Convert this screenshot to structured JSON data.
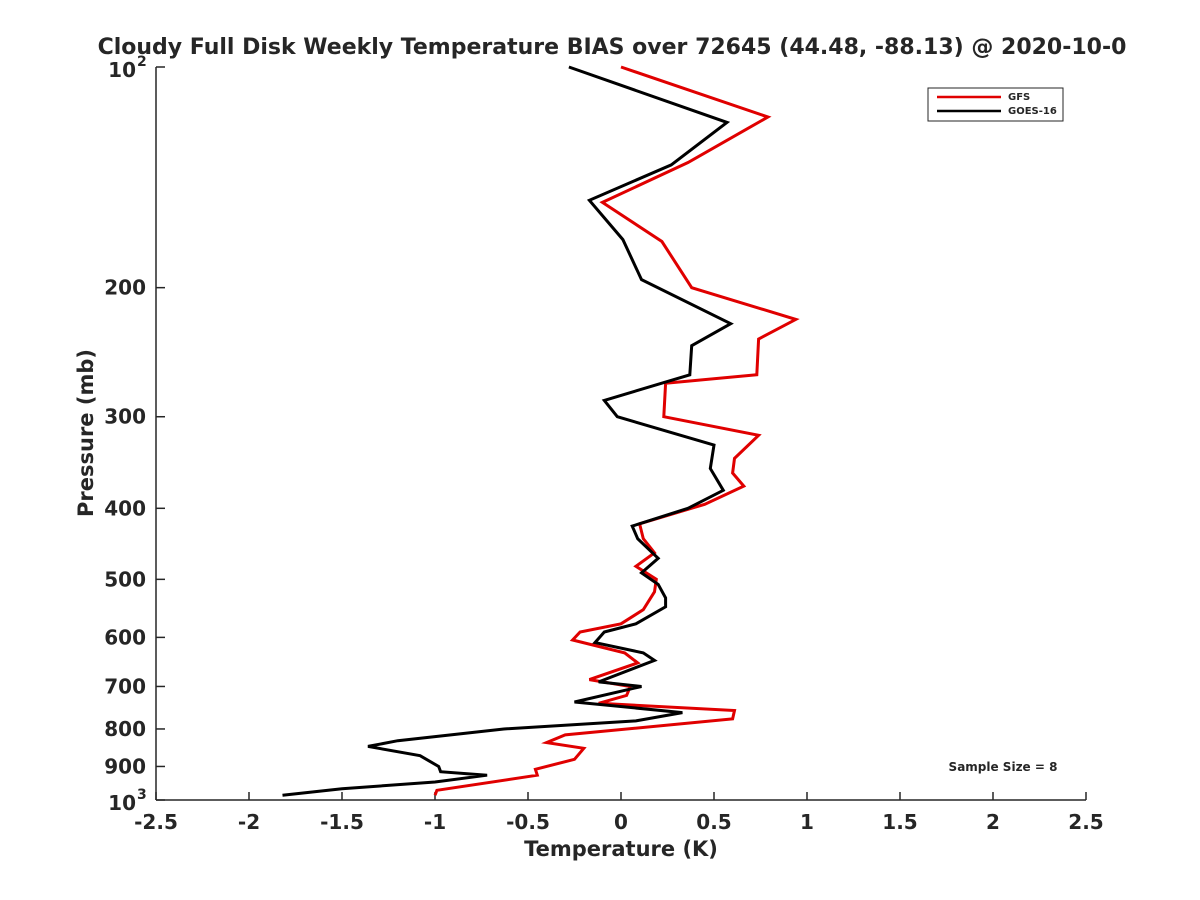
{
  "chart_data": {
    "type": "line",
    "title": "Cloudy Full Disk Weekly Temperature BIAS over 72645 (44.48, -88.13) @ 2020-10-0",
    "xlabel": "Temperature (K)",
    "ylabel": "Pressure (mb)",
    "xlim": [
      -2.5,
      2.5
    ],
    "ylim": [
      100,
      1000
    ],
    "y_scale": "log",
    "y_reversed": true,
    "grid": false,
    "legend_position": "top-right",
    "x_ticks": [
      "-2.5",
      "-2",
      "-1.5",
      "-1",
      "-0.5",
      "0",
      "0.5",
      "1",
      "1.5",
      "2",
      "2.5"
    ],
    "x_tick_values": [
      -2.5,
      -2,
      -1.5,
      -1,
      -0.5,
      0,
      0.5,
      1,
      1.5,
      2,
      2.5
    ],
    "y_ticks": [
      {
        "value": 100,
        "base": "10",
        "exp": "2"
      },
      {
        "value": 200,
        "label": "200"
      },
      {
        "value": 300,
        "label": "300"
      },
      {
        "value": 400,
        "label": "400"
      },
      {
        "value": 500,
        "label": "500"
      },
      {
        "value": 600,
        "label": "600"
      },
      {
        "value": 700,
        "label": "700"
      },
      {
        "value": 800,
        "label": "800"
      },
      {
        "value": 900,
        "label": "900"
      },
      {
        "value": 1000,
        "base": "10",
        "exp": "3"
      }
    ],
    "annotation": "Sample Size = 8",
    "series": [
      {
        "name": "GFS",
        "color": "#e00000",
        "points": [
          {
            "x": 0.0,
            "y": 100
          },
          {
            "x": 0.79,
            "y": 117
          },
          {
            "x": 0.36,
            "y": 135
          },
          {
            "x": -0.1,
            "y": 153
          },
          {
            "x": 0.22,
            "y": 173
          },
          {
            "x": 0.38,
            "y": 200
          },
          {
            "x": 0.94,
            "y": 221
          },
          {
            "x": 0.74,
            "y": 235
          },
          {
            "x": 0.73,
            "y": 263
          },
          {
            "x": 0.24,
            "y": 270
          },
          {
            "x": 0.23,
            "y": 300
          },
          {
            "x": 0.74,
            "y": 318
          },
          {
            "x": 0.61,
            "y": 342
          },
          {
            "x": 0.6,
            "y": 358
          },
          {
            "x": 0.66,
            "y": 373
          },
          {
            "x": 0.45,
            "y": 395
          },
          {
            "x": 0.1,
            "y": 420
          },
          {
            "x": 0.12,
            "y": 440
          },
          {
            "x": 0.18,
            "y": 460
          },
          {
            "x": 0.08,
            "y": 480
          },
          {
            "x": 0.19,
            "y": 500
          },
          {
            "x": 0.18,
            "y": 520
          },
          {
            "x": 0.12,
            "y": 550
          },
          {
            "x": 0.0,
            "y": 575
          },
          {
            "x": -0.22,
            "y": 590
          },
          {
            "x": -0.26,
            "y": 605
          },
          {
            "x": 0.02,
            "y": 630
          },
          {
            "x": 0.09,
            "y": 650
          },
          {
            "x": -0.17,
            "y": 685
          },
          {
            "x": 0.05,
            "y": 700
          },
          {
            "x": 0.03,
            "y": 720
          },
          {
            "x": -0.12,
            "y": 738
          },
          {
            "x": 0.61,
            "y": 755
          },
          {
            "x": 0.6,
            "y": 775
          },
          {
            "x": -0.3,
            "y": 815
          },
          {
            "x": -0.4,
            "y": 835
          },
          {
            "x": -0.2,
            "y": 850
          },
          {
            "x": -0.25,
            "y": 880
          },
          {
            "x": -0.46,
            "y": 908
          },
          {
            "x": -0.45,
            "y": 925
          },
          {
            "x": -0.99,
            "y": 970
          },
          {
            "x": -1.0,
            "y": 985
          }
        ]
      },
      {
        "name": "GOES-16",
        "color": "#000000",
        "points": [
          {
            "x": -0.28,
            "y": 100
          },
          {
            "x": 0.57,
            "y": 119
          },
          {
            "x": 0.27,
            "y": 136
          },
          {
            "x": -0.17,
            "y": 152
          },
          {
            "x": 0.01,
            "y": 172
          },
          {
            "x": 0.11,
            "y": 195
          },
          {
            "x": 0.59,
            "y": 224
          },
          {
            "x": 0.38,
            "y": 240
          },
          {
            "x": 0.37,
            "y": 263
          },
          {
            "x": -0.09,
            "y": 285
          },
          {
            "x": -0.02,
            "y": 300
          },
          {
            "x": 0.5,
            "y": 328
          },
          {
            "x": 0.48,
            "y": 353
          },
          {
            "x": 0.55,
            "y": 378
          },
          {
            "x": 0.36,
            "y": 400
          },
          {
            "x": 0.06,
            "y": 423
          },
          {
            "x": 0.09,
            "y": 440
          },
          {
            "x": 0.2,
            "y": 468
          },
          {
            "x": 0.11,
            "y": 490
          },
          {
            "x": 0.2,
            "y": 508
          },
          {
            "x": 0.24,
            "y": 530
          },
          {
            "x": 0.24,
            "y": 545
          },
          {
            "x": 0.08,
            "y": 575
          },
          {
            "x": -0.09,
            "y": 590
          },
          {
            "x": -0.14,
            "y": 610
          },
          {
            "x": 0.12,
            "y": 630
          },
          {
            "x": 0.18,
            "y": 645
          },
          {
            "x": -0.12,
            "y": 690
          },
          {
            "x": 0.11,
            "y": 700
          },
          {
            "x": -0.25,
            "y": 735
          },
          {
            "x": 0.33,
            "y": 760
          },
          {
            "x": 0.08,
            "y": 780
          },
          {
            "x": -0.63,
            "y": 800
          },
          {
            "x": -1.2,
            "y": 830
          },
          {
            "x": -1.36,
            "y": 845
          },
          {
            "x": -1.08,
            "y": 870
          },
          {
            "x": -0.98,
            "y": 900
          },
          {
            "x": -0.97,
            "y": 915
          },
          {
            "x": -0.72,
            "y": 925
          },
          {
            "x": -1.0,
            "y": 945
          },
          {
            "x": -1.5,
            "y": 965
          },
          {
            "x": -1.82,
            "y": 985
          }
        ]
      }
    ]
  }
}
